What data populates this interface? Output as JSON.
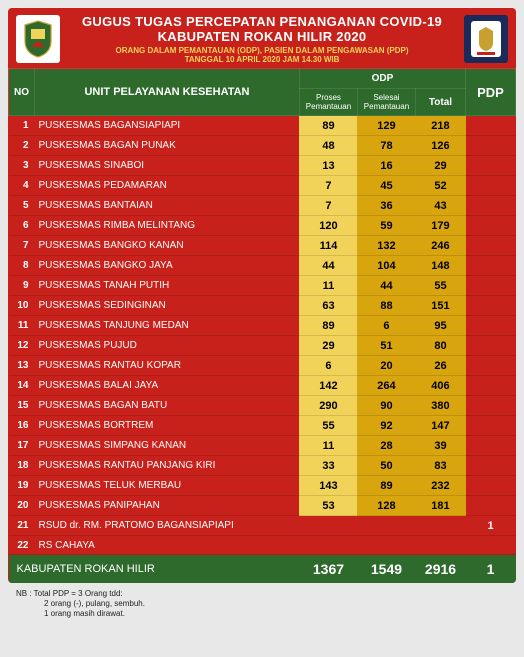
{
  "header": {
    "title_line1": "GUGUS TUGAS PERCEPATAN PENANGANAN COVID-19",
    "title_line2": "KABUPATEN ROKAN HILIR 2020",
    "subtitle": "ORANG DALAM PEMANTAUAN (ODP), PASIEN DALAM PENGAWASAN (PDP)",
    "date_line": "TANGGAL 10 APRIL 2020   JAM 14.30 WIB"
  },
  "columns": {
    "no": "NO",
    "unit": "UNIT PELAYANAN KESEHATAN",
    "odp": "ODP",
    "odp_proses": "Proses Pemantauan",
    "odp_selesai": "Selesai Pemantauan",
    "odp_total": "Total",
    "pdp": "PDP"
  },
  "colors": {
    "header_bg": "#c8201a",
    "thead_bg": "#2d6a2c",
    "proses_bg": "#f2d35a",
    "selesai_bg": "#d9a50f",
    "total_bg": "#d9a50f",
    "pdp_bg": "#c8201a",
    "accent_text": "#f2d35a"
  },
  "rows": [
    {
      "idx": 1,
      "name": "PUSKESMAS BAGANSIAPIAPI",
      "p": 89,
      "s": 129,
      "t": 218,
      "pdp": ""
    },
    {
      "idx": 2,
      "name": "PUSKESMAS BAGAN PUNAK",
      "p": 48,
      "s": 78,
      "t": 126,
      "pdp": ""
    },
    {
      "idx": 3,
      "name": "PUSKESMAS SINABOI",
      "p": 13,
      "s": 16,
      "t": 29,
      "pdp": ""
    },
    {
      "idx": 4,
      "name": "PUSKESMAS PEDAMARAN",
      "p": 7,
      "s": 45,
      "t": 52,
      "pdp": ""
    },
    {
      "idx": 5,
      "name": "PUSKESMAS BANTAIAN",
      "p": 7,
      "s": 36,
      "t": 43,
      "pdp": ""
    },
    {
      "idx": 6,
      "name": "PUSKESMAS RIMBA MELINTANG",
      "p": 120,
      "s": 59,
      "t": 179,
      "pdp": ""
    },
    {
      "idx": 7,
      "name": "PUSKESMAS BANGKO KANAN",
      "p": 114,
      "s": 132,
      "t": 246,
      "pdp": ""
    },
    {
      "idx": 8,
      "name": "PUSKESMAS BANGKO JAYA",
      "p": 44,
      "s": 104,
      "t": 148,
      "pdp": ""
    },
    {
      "idx": 9,
      "name": "PUSKESMAS TANAH PUTIH",
      "p": 11,
      "s": 44,
      "t": 55,
      "pdp": ""
    },
    {
      "idx": 10,
      "name": "PUSKESMAS SEDINGINAN",
      "p": 63,
      "s": 88,
      "t": 151,
      "pdp": ""
    },
    {
      "idx": 11,
      "name": "PUSKESMAS TANJUNG MEDAN",
      "p": 89,
      "s": 6,
      "t": 95,
      "pdp": ""
    },
    {
      "idx": 12,
      "name": "PUSKESMAS PUJUD",
      "p": 29,
      "s": 51,
      "t": 80,
      "pdp": ""
    },
    {
      "idx": 13,
      "name": "PUSKESMAS RANTAU KOPAR",
      "p": 6,
      "s": 20,
      "t": 26,
      "pdp": ""
    },
    {
      "idx": 14,
      "name": "PUSKESMAS BALAI JAYA",
      "p": 142,
      "s": 264,
      "t": 406,
      "pdp": ""
    },
    {
      "idx": 15,
      "name": "PUSKESMAS BAGAN BATU",
      "p": 290,
      "s": 90,
      "t": 380,
      "pdp": ""
    },
    {
      "idx": 16,
      "name": "PUSKESMAS BORTREM",
      "p": 55,
      "s": 92,
      "t": 147,
      "pdp": ""
    },
    {
      "idx": 17,
      "name": "PUSKESMAS SIMPANG KANAN",
      "p": 11,
      "s": 28,
      "t": 39,
      "pdp": ""
    },
    {
      "idx": 18,
      "name": "PUSKESMAS RANTAU PANJANG KIRI",
      "p": 33,
      "s": 50,
      "t": 83,
      "pdp": ""
    },
    {
      "idx": 19,
      "name": "PUSKESMAS TELUK MERBAU",
      "p": 143,
      "s": 89,
      "t": 232,
      "pdp": ""
    },
    {
      "idx": 20,
      "name": "PUSKESMAS PANIPAHAN",
      "p": 53,
      "s": 128,
      "t": 181,
      "pdp": ""
    },
    {
      "idx": 21,
      "name": "RSUD dr. RM. PRATOMO BAGANSIAPIAPI",
      "p": "",
      "s": "",
      "t": "",
      "pdp": 1
    },
    {
      "idx": 22,
      "name": "RS CAHAYA",
      "p": "",
      "s": "",
      "t": "",
      "pdp": ""
    }
  ],
  "footer": {
    "label": "KABUPATEN ROKAN HILIR",
    "p": 1367,
    "s": 1549,
    "t": 2916,
    "pdp": 1
  },
  "nb": {
    "line1": "NB :  Total PDP = 3 Orang tdd:",
    "line2": "2 orang (-), pulang, sembuh.",
    "line3": "1 orang masih dirawat."
  }
}
